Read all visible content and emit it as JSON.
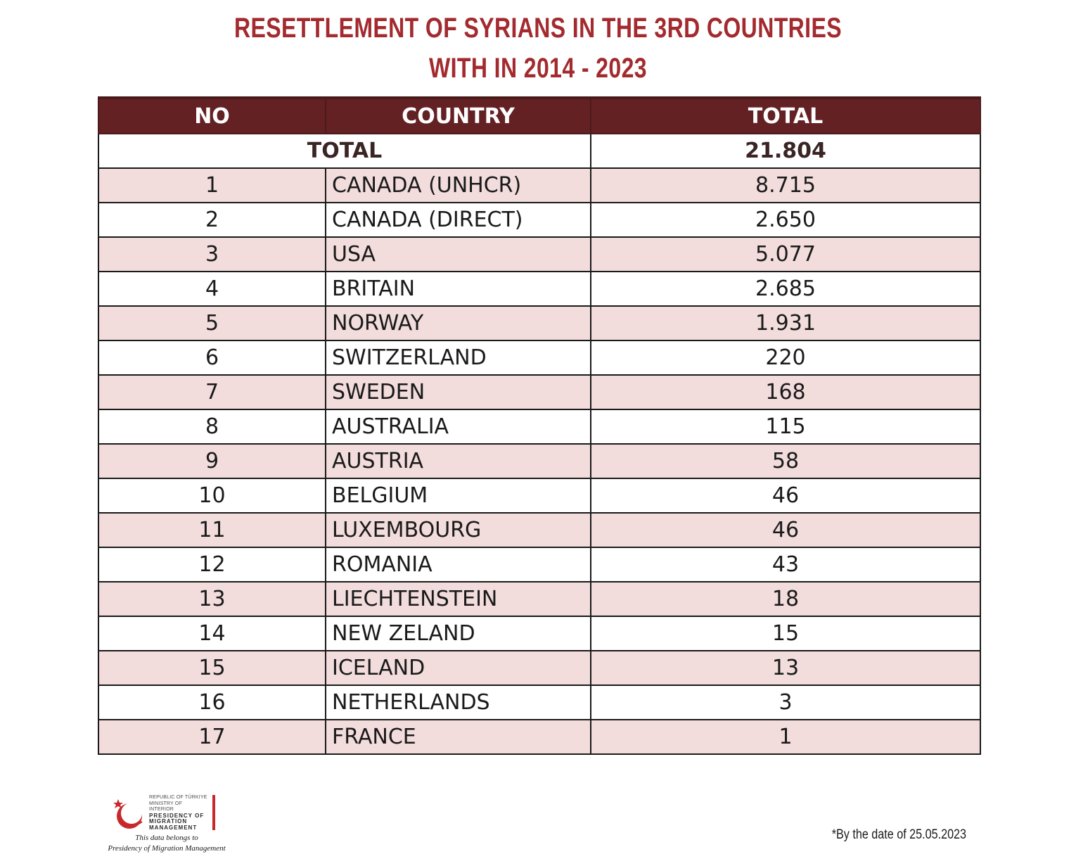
{
  "title": {
    "line1": "RESETTLEMENT OF SYRIANS IN THE 3RD COUNTRIES",
    "line2": "WITH IN 2014 - 2023"
  },
  "table": {
    "headers": {
      "no": "NO",
      "country": "COUNTRY",
      "total": "TOTAL"
    },
    "total_row": {
      "label": "TOTAL",
      "value": "21.804"
    },
    "rows": [
      {
        "no": "1",
        "country": "CANADA (UNHCR)",
        "total": "8.715"
      },
      {
        "no": "2",
        "country": "CANADA (DIRECT)",
        "total": "2.650"
      },
      {
        "no": "3",
        "country": "USA",
        "total": "5.077"
      },
      {
        "no": "4",
        "country": "BRITAIN",
        "total": "2.685"
      },
      {
        "no": "5",
        "country": "NORWAY",
        "total": "1.931"
      },
      {
        "no": "6",
        "country": "SWITZERLAND",
        "total": "220"
      },
      {
        "no": "7",
        "country": "SWEDEN",
        "total": "168"
      },
      {
        "no": "8",
        "country": "AUSTRALIA",
        "total": "115"
      },
      {
        "no": "9",
        "country": "AUSTRIA",
        "total": "58"
      },
      {
        "no": "10",
        "country": "BELGIUM",
        "total": "46"
      },
      {
        "no": "11",
        "country": "LUXEMBOURG",
        "total": "46"
      },
      {
        "no": "12",
        "country": "ROMANIA",
        "total": "43"
      },
      {
        "no": "13",
        "country": "LIECHTENSTEIN",
        "total": "18"
      },
      {
        "no": "14",
        "country": "NEW ZELAND",
        "total": "15"
      },
      {
        "no": "15",
        "country": "ICELAND",
        "total": "13"
      },
      {
        "no": "16",
        "country": "NETHERLANDS",
        "total": "3"
      },
      {
        "no": "17",
        "country": "FRANCE",
        "total": "1"
      }
    ]
  },
  "logo": {
    "line1": "REPUBLIC OF TÜRKIYE",
    "line2": "MINISTRY OF INTERIOR",
    "line3": "PRESIDENCY OF",
    "line4": "MIGRATION MANAGEMENT"
  },
  "credit": {
    "line1": "This data belongs to",
    "line2": "Presidency of Migration Management"
  },
  "date_note": "*By the date of 25.05.2023",
  "colors": {
    "title": "#a32a2e",
    "header_bg": "#642124",
    "stripe": "#f2dcdc",
    "logo_red": "#c8282c"
  }
}
